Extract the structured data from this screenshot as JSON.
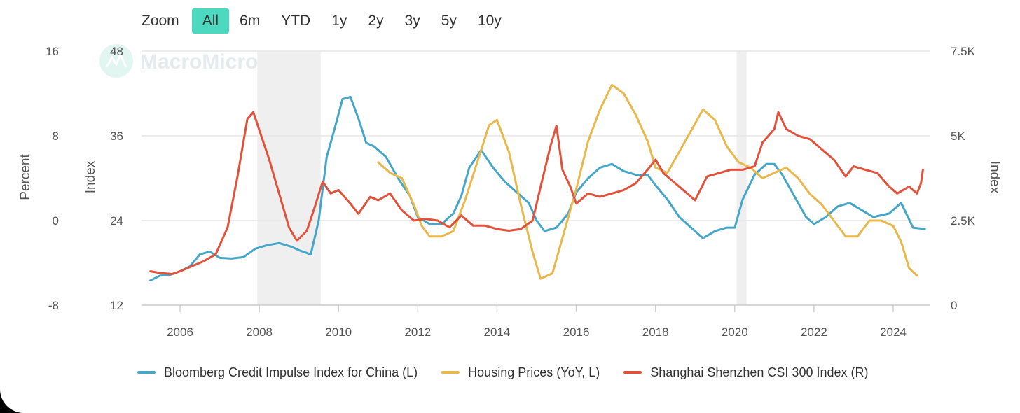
{
  "zoom": {
    "label": "Zoom",
    "buttons": [
      "All",
      "6m",
      "YTD",
      "1y",
      "2y",
      "3y",
      "5y",
      "10y"
    ],
    "active": "All"
  },
  "watermark": {
    "text": "MacroMicro"
  },
  "colors": {
    "accent": "#4dd9c0",
    "credit": "#45a6c8",
    "housing": "#e8b84a",
    "csi": "#e2513a",
    "recession_band": "#efefef",
    "grid": "#e6e6e6"
  },
  "chart_data": {
    "type": "line",
    "x_ticks": [
      "2006",
      "2008",
      "2010",
      "2012",
      "2014",
      "2016",
      "2018",
      "2020",
      "2022",
      "2024"
    ],
    "xlim": [
      2005.0,
      2025.0
    ],
    "axes": {
      "left_outer": {
        "title": "Percent",
        "ticks": [
          "16",
          "8",
          "0",
          "-8"
        ],
        "range": [
          -8,
          16
        ]
      },
      "left_inner": {
        "title": "Index",
        "ticks": [
          "48",
          "36",
          "24",
          "12"
        ],
        "range": [
          12,
          48
        ]
      },
      "right": {
        "title": "Index",
        "ticks": [
          "7.5K",
          "5K",
          "2.5K",
          "0"
        ],
        "range": [
          0,
          7500
        ]
      }
    },
    "grid": true,
    "legend_position": "bottom",
    "shaded_periods": [
      [
        2007.95,
        2009.55
      ],
      [
        2020.05,
        2020.3
      ]
    ],
    "series": [
      {
        "name": "Bloomberg Credit Impulse Index for China (L)",
        "axis": "left_inner",
        "color": "#45a6c8",
        "points": [
          [
            2005.25,
            15.5
          ],
          [
            2005.5,
            16.2
          ],
          [
            2005.75,
            16.3
          ],
          [
            2006.0,
            16.8
          ],
          [
            2006.25,
            17.5
          ],
          [
            2006.5,
            19.2
          ],
          [
            2006.75,
            19.6
          ],
          [
            2007.0,
            18.7
          ],
          [
            2007.3,
            18.6
          ],
          [
            2007.6,
            18.8
          ],
          [
            2007.9,
            20.0
          ],
          [
            2008.2,
            20.5
          ],
          [
            2008.5,
            20.8
          ],
          [
            2008.8,
            20.3
          ],
          [
            2009.0,
            19.8
          ],
          [
            2009.3,
            19.2
          ],
          [
            2009.5,
            24.0
          ],
          [
            2009.7,
            33.0
          ],
          [
            2009.9,
            37.0
          ],
          [
            2010.1,
            41.2
          ],
          [
            2010.3,
            41.5
          ],
          [
            2010.5,
            38.5
          ],
          [
            2010.7,
            35.0
          ],
          [
            2010.9,
            34.5
          ],
          [
            2011.2,
            33.0
          ],
          [
            2011.5,
            30.0
          ],
          [
            2011.8,
            27.5
          ],
          [
            2012.0,
            24.5
          ],
          [
            2012.3,
            23.5
          ],
          [
            2012.6,
            23.5
          ],
          [
            2012.9,
            25.0
          ],
          [
            2013.1,
            27.5
          ],
          [
            2013.3,
            31.5
          ],
          [
            2013.6,
            34.0
          ],
          [
            2013.9,
            31.5
          ],
          [
            2014.2,
            29.5
          ],
          [
            2014.5,
            28.0
          ],
          [
            2014.8,
            26.5
          ],
          [
            2015.0,
            24.0
          ],
          [
            2015.2,
            22.5
          ],
          [
            2015.5,
            23.0
          ],
          [
            2015.8,
            25.0
          ],
          [
            2016.0,
            28.0
          ],
          [
            2016.3,
            30.0
          ],
          [
            2016.6,
            31.5
          ],
          [
            2016.9,
            32.0
          ],
          [
            2017.2,
            31.0
          ],
          [
            2017.5,
            30.5
          ],
          [
            2017.8,
            30.5
          ],
          [
            2018.0,
            29.0
          ],
          [
            2018.3,
            27.0
          ],
          [
            2018.6,
            24.5
          ],
          [
            2018.9,
            23.0
          ],
          [
            2019.2,
            21.5
          ],
          [
            2019.5,
            22.5
          ],
          [
            2019.8,
            23.0
          ],
          [
            2020.0,
            23.0
          ],
          [
            2020.2,
            27.0
          ],
          [
            2020.5,
            30.5
          ],
          [
            2020.8,
            32.0
          ],
          [
            2021.0,
            32.0
          ],
          [
            2021.2,
            30.5
          ],
          [
            2021.5,
            27.5
          ],
          [
            2021.8,
            24.5
          ],
          [
            2022.0,
            23.5
          ],
          [
            2022.3,
            24.5
          ],
          [
            2022.6,
            26.0
          ],
          [
            2022.9,
            26.5
          ],
          [
            2023.2,
            25.5
          ],
          [
            2023.5,
            24.5
          ],
          [
            2023.9,
            25.0
          ],
          [
            2024.2,
            26.5
          ],
          [
            2024.5,
            23.0
          ],
          [
            2024.8,
            22.8
          ]
        ]
      },
      {
        "name": "Housing Prices (YoY, L)",
        "axis": "left_outer",
        "color": "#e8b84a",
        "points": [
          [
            2011.0,
            5.5
          ],
          [
            2011.3,
            4.5
          ],
          [
            2011.6,
            4.0
          ],
          [
            2011.9,
            1.5
          ],
          [
            2012.1,
            -0.5
          ],
          [
            2012.3,
            -1.5
          ],
          [
            2012.6,
            -1.5
          ],
          [
            2012.9,
            -1.0
          ],
          [
            2013.2,
            2.0
          ],
          [
            2013.5,
            5.5
          ],
          [
            2013.8,
            9.0
          ],
          [
            2014.0,
            9.5
          ],
          [
            2014.3,
            6.5
          ],
          [
            2014.6,
            1.5
          ],
          [
            2014.9,
            -3.0
          ],
          [
            2015.1,
            -5.5
          ],
          [
            2015.4,
            -5.0
          ],
          [
            2015.7,
            -1.0
          ],
          [
            2016.0,
            3.0
          ],
          [
            2016.3,
            7.5
          ],
          [
            2016.6,
            10.5
          ],
          [
            2016.9,
            12.8
          ],
          [
            2017.2,
            12.0
          ],
          [
            2017.5,
            10.0
          ],
          [
            2017.8,
            7.5
          ],
          [
            2018.0,
            5.0
          ],
          [
            2018.3,
            4.5
          ],
          [
            2018.6,
            6.5
          ],
          [
            2018.9,
            8.5
          ],
          [
            2019.2,
            10.5
          ],
          [
            2019.5,
            9.5
          ],
          [
            2019.8,
            7.0
          ],
          [
            2020.1,
            5.5
          ],
          [
            2020.4,
            5.0
          ],
          [
            2020.7,
            4.0
          ],
          [
            2021.0,
            4.5
          ],
          [
            2021.3,
            5.0
          ],
          [
            2021.6,
            4.0
          ],
          [
            2021.9,
            2.5
          ],
          [
            2022.2,
            1.5
          ],
          [
            2022.5,
            0.0
          ],
          [
            2022.8,
            -1.5
          ],
          [
            2023.1,
            -1.5
          ],
          [
            2023.4,
            0.0
          ],
          [
            2023.7,
            0.0
          ],
          [
            2024.0,
            -0.5
          ],
          [
            2024.2,
            -2.0
          ],
          [
            2024.4,
            -4.5
          ],
          [
            2024.6,
            -5.2
          ]
        ]
      },
      {
        "name": "Shanghai Shenzhen CSI 300 Index (R)",
        "axis": "right",
        "color": "#e2513a",
        "points": [
          [
            2005.25,
            1000
          ],
          [
            2005.5,
            950
          ],
          [
            2005.8,
            920
          ],
          [
            2006.0,
            1000
          ],
          [
            2006.3,
            1150
          ],
          [
            2006.6,
            1300
          ],
          [
            2006.9,
            1500
          ],
          [
            2007.2,
            2300
          ],
          [
            2007.45,
            3800
          ],
          [
            2007.7,
            5500
          ],
          [
            2007.85,
            5700
          ],
          [
            2008.05,
            5000
          ],
          [
            2008.25,
            4300
          ],
          [
            2008.5,
            3300
          ],
          [
            2008.75,
            2300
          ],
          [
            2008.95,
            1900
          ],
          [
            2009.2,
            2200
          ],
          [
            2009.4,
            2900
          ],
          [
            2009.6,
            3650
          ],
          [
            2009.8,
            3300
          ],
          [
            2010.0,
            3400
          ],
          [
            2010.3,
            3000
          ],
          [
            2010.5,
            2700
          ],
          [
            2010.8,
            3200
          ],
          [
            2011.0,
            3100
          ],
          [
            2011.3,
            3300
          ],
          [
            2011.6,
            2800
          ],
          [
            2011.9,
            2500
          ],
          [
            2012.2,
            2550
          ],
          [
            2012.5,
            2500
          ],
          [
            2012.8,
            2300
          ],
          [
            2013.1,
            2650
          ],
          [
            2013.4,
            2350
          ],
          [
            2013.7,
            2350
          ],
          [
            2014.0,
            2250
          ],
          [
            2014.3,
            2200
          ],
          [
            2014.6,
            2250
          ],
          [
            2014.9,
            2500
          ],
          [
            2015.1,
            3500
          ],
          [
            2015.35,
            4700
          ],
          [
            2015.5,
            5300
          ],
          [
            2015.65,
            4000
          ],
          [
            2015.85,
            3500
          ],
          [
            2016.0,
            3000
          ],
          [
            2016.3,
            3300
          ],
          [
            2016.6,
            3200
          ],
          [
            2016.9,
            3300
          ],
          [
            2017.2,
            3400
          ],
          [
            2017.5,
            3600
          ],
          [
            2017.8,
            4000
          ],
          [
            2018.0,
            4300
          ],
          [
            2018.2,
            3900
          ],
          [
            2018.5,
            3600
          ],
          [
            2018.8,
            3300
          ],
          [
            2019.0,
            3100
          ],
          [
            2019.3,
            3800
          ],
          [
            2019.6,
            3900
          ],
          [
            2019.9,
            4000
          ],
          [
            2020.2,
            4000
          ],
          [
            2020.5,
            4100
          ],
          [
            2020.7,
            4800
          ],
          [
            2021.0,
            5200
          ],
          [
            2021.1,
            5700
          ],
          [
            2021.3,
            5200
          ],
          [
            2021.6,
            5000
          ],
          [
            2021.9,
            4900
          ],
          [
            2022.2,
            4600
          ],
          [
            2022.5,
            4300
          ],
          [
            2022.8,
            3800
          ],
          [
            2023.0,
            4100
          ],
          [
            2023.3,
            4000
          ],
          [
            2023.6,
            3900
          ],
          [
            2023.9,
            3500
          ],
          [
            2024.1,
            3300
          ],
          [
            2024.4,
            3500
          ],
          [
            2024.6,
            3300
          ],
          [
            2024.7,
            3600
          ],
          [
            2024.75,
            4000
          ]
        ]
      }
    ],
    "legend": [
      "Bloomberg Credit Impulse Index for China (L)",
      "Housing Prices (YoY, L)",
      "Shanghai Shenzhen CSI 300 Index (R)"
    ]
  }
}
